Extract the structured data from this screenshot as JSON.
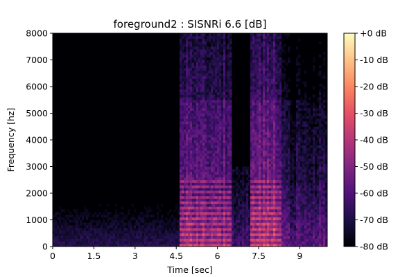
{
  "chart_data": {
    "type": "heatmap",
    "title": "foreground2 : SISNRi 6.6 [dB]",
    "xlabel": "Time [sec]",
    "ylabel": "Frequency [hz]",
    "xlim": [
      0,
      10
    ],
    "ylim": [
      0,
      8000
    ],
    "x_ticks": [
      {
        "value": 0,
        "label": "0"
      },
      {
        "value": 1.5,
        "label": "1.5"
      },
      {
        "value": 3,
        "label": "3"
      },
      {
        "value": 4.5,
        "label": "4.5"
      },
      {
        "value": 6,
        "label": "6"
      },
      {
        "value": 7.5,
        "label": "7.5"
      },
      {
        "value": 9,
        "label": "9"
      }
    ],
    "y_ticks": [
      {
        "value": 0,
        "label": "0"
      },
      {
        "value": 1000,
        "label": "1000"
      },
      {
        "value": 2000,
        "label": "2000"
      },
      {
        "value": 3000,
        "label": "3000"
      },
      {
        "value": 4000,
        "label": "4000"
      },
      {
        "value": 5000,
        "label": "5000"
      },
      {
        "value": 6000,
        "label": "6000"
      },
      {
        "value": 7000,
        "label": "7000"
      },
      {
        "value": 8000,
        "label": "8000"
      }
    ],
    "colorbar": {
      "colormap": "magma",
      "range": [
        -80,
        0
      ],
      "ticks": [
        {
          "value": 0,
          "label": "+0 dB"
        },
        {
          "value": -10,
          "label": "-10 dB"
        },
        {
          "value": -20,
          "label": "-20 dB"
        },
        {
          "value": -30,
          "label": "-30 dB"
        },
        {
          "value": -40,
          "label": "-40 dB"
        },
        {
          "value": -50,
          "label": "-50 dB"
        },
        {
          "value": -60,
          "label": "-60 dB"
        },
        {
          "value": -70,
          "label": "-70 dB"
        },
        {
          "value": -80,
          "label": "-80 dB"
        }
      ]
    },
    "energy_regions": [
      {
        "start": 0.0,
        "end": 4.6,
        "level_db": -72,
        "description": "low-level noise, mostly below 1000 hz"
      },
      {
        "start": 4.6,
        "end": 6.5,
        "level_db": -45,
        "description": "strong harmonics below 2500 hz, broadband energy up to 8000 hz"
      },
      {
        "start": 6.5,
        "end": 7.2,
        "level_db": -62,
        "description": "weaker band below 3000 hz"
      },
      {
        "start": 7.2,
        "end": 8.3,
        "level_db": -42,
        "description": "strong harmonics, broadband up to 8000 hz"
      },
      {
        "start": 8.3,
        "end": 10.0,
        "level_db": -58,
        "description": "moderate energy below 1500 hz"
      }
    ]
  }
}
